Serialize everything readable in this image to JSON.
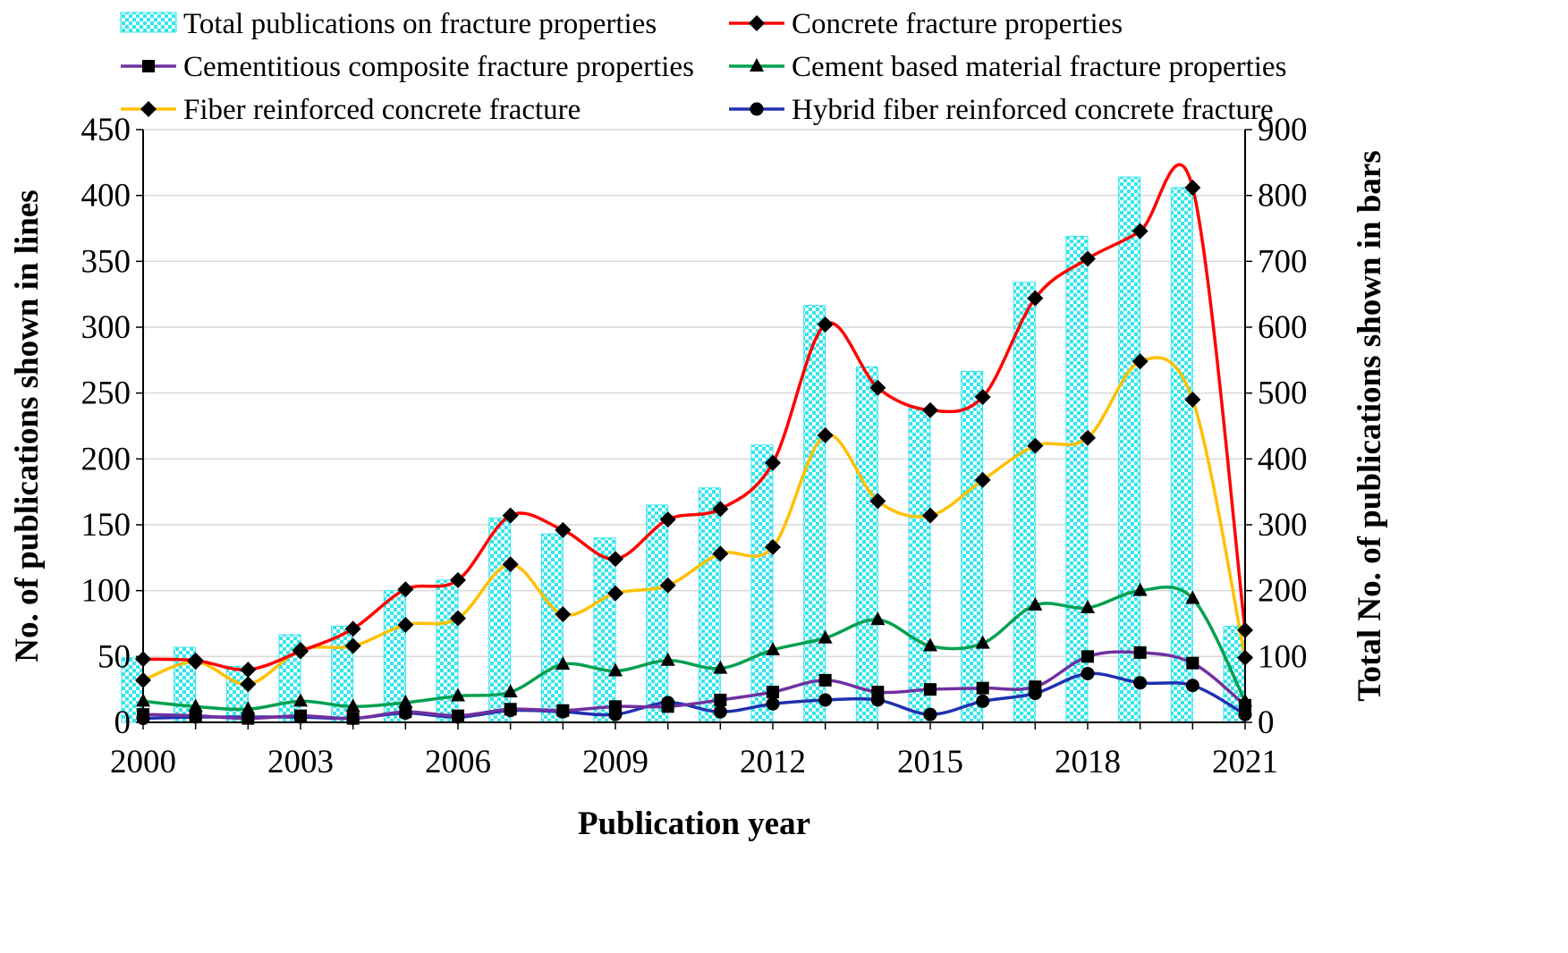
{
  "chart_data": {
    "type": "bar+line",
    "xlabel": "Publication  year",
    "ylabel_left": "No. of publications  shown  in lines",
    "ylabel_right": "Total No. of publications  shown  in bars",
    "ylim_left": [
      0,
      450
    ],
    "ylim_right": [
      0,
      900
    ],
    "yticks_left": [
      "0",
      "50",
      "100",
      "150",
      "200",
      "250",
      "300",
      "350",
      "400",
      "450"
    ],
    "yticks_right": [
      "0",
      "100",
      "200",
      "300",
      "400",
      "500",
      "600",
      "700",
      "800",
      "900"
    ],
    "xticks": [
      "2000",
      "2003",
      "2006",
      "2009",
      "2012",
      "2015",
      "2018",
      "2021"
    ],
    "x": [
      2000,
      2001,
      2002,
      2003,
      2004,
      2005,
      2006,
      2007,
      2008,
      2009,
      2010,
      2011,
      2012,
      2013,
      2014,
      2015,
      2016,
      2017,
      2018,
      2019,
      2020,
      2021
    ],
    "bars": {
      "name": "Total publications on fracture properties",
      "axis": "right",
      "color": "#33E6EE",
      "values": [
        98,
        114,
        85,
        133,
        146,
        200,
        216,
        310,
        286,
        280,
        330,
        356,
        421,
        633,
        540,
        477,
        533,
        668,
        738,
        828,
        812,
        146
      ]
    },
    "series": [
      {
        "name": "Concrete fracture properties",
        "color": "#FF0000",
        "marker": "diamond",
        "values": [
          48,
          47,
          40,
          54,
          71,
          101,
          108,
          157,
          146,
          124,
          154,
          162,
          197,
          302,
          254,
          237,
          247,
          322,
          352,
          373,
          406,
          70
        ]
      },
      {
        "name": "Cementitious composite fracture properties",
        "color": "#7030A0",
        "marker": "square",
        "values": [
          6,
          5,
          3,
          5,
          3,
          8,
          5,
          10,
          9,
          12,
          12,
          17,
          23,
          32,
          23,
          25,
          26,
          27,
          50,
          53,
          45,
          13
        ]
      },
      {
        "name": "Cement based material fracture properties",
        "color": "#00A050",
        "marker": "triangle",
        "values": [
          16,
          12,
          10,
          16,
          12,
          15,
          20,
          23,
          44,
          39,
          47,
          41,
          55,
          64,
          78,
          58,
          60,
          89,
          87,
          100,
          94,
          16
        ]
      },
      {
        "name": "Fiber reinforced concrete fracture",
        "color": "#FFC000",
        "marker": "diamond",
        "values": [
          32,
          46,
          29,
          55,
          58,
          74,
          79,
          120,
          82,
          98,
          104,
          128,
          133,
          218,
          168,
          157,
          184,
          210,
          216,
          274,
          245,
          49
        ]
      },
      {
        "name": "Hybrid fiber reinforced concrete fracture",
        "color": "#2030B0",
        "marker": "circle",
        "values": [
          3,
          4,
          4,
          4,
          3,
          7,
          4,
          9,
          8,
          6,
          15,
          8,
          14,
          17,
          17,
          6,
          16,
          22,
          37,
          30,
          28,
          6
        ]
      }
    ]
  }
}
